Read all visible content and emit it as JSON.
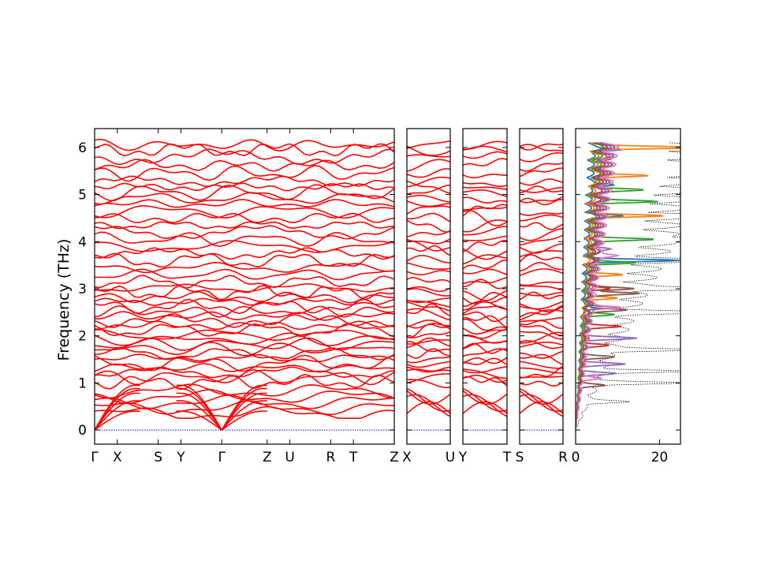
{
  "chart_data": {
    "type": "line",
    "title": "",
    "ylabel": "Frequency (THz)",
    "ylim": [
      -0.3,
      6.4
    ],
    "yticks": [
      0,
      1,
      2,
      3,
      4,
      5,
      6
    ],
    "zero_line_color": "#0000cc",
    "band_color": "#ff0000",
    "panels": [
      {
        "id": "main",
        "xticks": [
          {
            "label": "Γ",
            "pos": 0
          },
          {
            "label": "X",
            "pos": 0.5
          },
          {
            "label": "S",
            "pos": 1.4
          },
          {
            "label": "Y",
            "pos": 1.9
          },
          {
            "label": "Γ",
            "pos": 2.8
          },
          {
            "label": "Z",
            "pos": 3.8
          },
          {
            "label": "U",
            "pos": 4.3
          },
          {
            "label": "R",
            "pos": 5.2
          },
          {
            "label": "T",
            "pos": 5.7
          },
          {
            "label": "Z",
            "pos": 6.6
          }
        ],
        "xrange": [
          0,
          6.6
        ]
      },
      {
        "id": "XU",
        "xticks": [
          {
            "label": "X",
            "pos": 0
          },
          {
            "label": "U",
            "pos": 1
          }
        ],
        "xrange": [
          0,
          1
        ]
      },
      {
        "id": "YT",
        "xticks": [
          {
            "label": "Y",
            "pos": 0
          },
          {
            "label": "T",
            "pos": 1
          }
        ],
        "xrange": [
          0,
          1
        ]
      },
      {
        "id": "SR",
        "xticks": [
          {
            "label": "S",
            "pos": 0
          },
          {
            "label": "R",
            "pos": 1
          }
        ],
        "xrange": [
          0,
          1
        ]
      }
    ],
    "band_levels": [
      1.02,
      1.12,
      1.22,
      1.32,
      1.42,
      1.52,
      1.62,
      1.72,
      1.82,
      1.92,
      2.02,
      2.12,
      2.22,
      2.32,
      2.42,
      2.52,
      2.62,
      2.72,
      2.82,
      2.92,
      3.02,
      3.15,
      3.3,
      3.45,
      3.6,
      3.75,
      3.9,
      4.05,
      4.2,
      4.35,
      4.5,
      4.65,
      4.8,
      4.92,
      5.04,
      5.16,
      5.28,
      5.45,
      5.62,
      5.8,
      5.95,
      6.05
    ],
    "acoustic_top": [
      0.4,
      0.62,
      0.78,
      0.88,
      0.95
    ],
    "dos": {
      "xlim": [
        0,
        25
      ],
      "xticks": [
        0,
        20
      ],
      "series": [
        {
          "color": "#1f77b4",
          "peaks": [
            [
              3.6,
              22
            ],
            [
              4.55,
              8
            ],
            [
              5.2,
              6
            ],
            [
              2.6,
              9
            ],
            [
              5.95,
              7
            ]
          ]
        },
        {
          "color": "#ff7f0e",
          "peaks": [
            [
              6.0,
              24
            ],
            [
              5.4,
              13
            ],
            [
              4.55,
              17
            ],
            [
              2.8,
              8
            ],
            [
              3.3,
              9
            ]
          ]
        },
        {
          "color": "#2ca02c",
          "peaks": [
            [
              4.85,
              15
            ],
            [
              4.05,
              16
            ],
            [
              3.55,
              11
            ],
            [
              2.45,
              7
            ],
            [
              5.1,
              11
            ]
          ]
        },
        {
          "color": "#d62728",
          "peaks": [
            [
              2.2,
              9
            ],
            [
              3.0,
              5
            ],
            [
              5.75,
              3
            ],
            [
              1.8,
              6
            ]
          ]
        },
        {
          "color": "#9467bd",
          "peaks": [
            [
              1.95,
              12
            ],
            [
              1.4,
              10
            ],
            [
              1.2,
              8
            ],
            [
              3.85,
              4
            ]
          ]
        },
        {
          "color": "#8c564b",
          "peaks": [
            [
              2.9,
              11
            ],
            [
              3.0,
              10
            ],
            [
              1.55,
              7
            ],
            [
              0.95,
              6
            ],
            [
              2.55,
              9
            ]
          ]
        },
        {
          "color": "#e377c2",
          "peaks": [
            [
              2.6,
              8
            ],
            [
              3.7,
              6
            ],
            [
              1.1,
              5
            ]
          ]
        }
      ],
      "total_peaks": [
        [
          6.0,
          24
        ],
        [
          5.55,
          23
        ],
        [
          5.3,
          24
        ],
        [
          5.1,
          20
        ],
        [
          4.55,
          24
        ],
        [
          4.05,
          24
        ],
        [
          3.6,
          24
        ],
        [
          3.0,
          24
        ],
        [
          2.5,
          24
        ],
        [
          1.7,
          22
        ],
        [
          1.25,
          21
        ],
        [
          1.0,
          20
        ],
        [
          0.6,
          10
        ]
      ]
    }
  }
}
